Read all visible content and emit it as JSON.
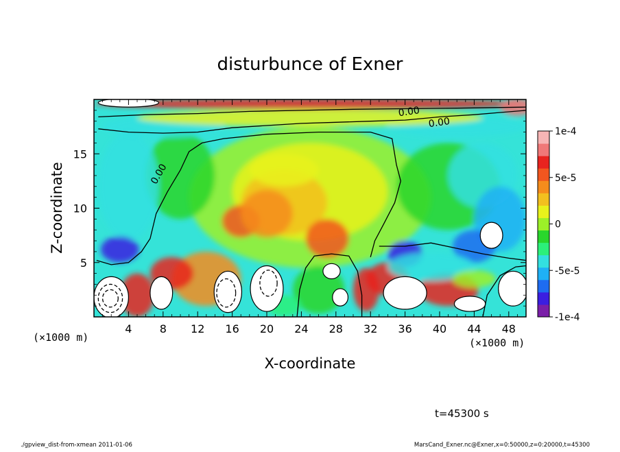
{
  "chart_data": {
    "type": "heatmap",
    "title": "disturbunce of Exner",
    "xlabel": "X-coordinate",
    "ylabel": "Z-coordinate",
    "x_unit": "(×1000 m)",
    "z_unit": "(×1000 m)",
    "xlim": [
      0,
      50
    ],
    "ylim": [
      0,
      20
    ],
    "x_ticks": [
      "4",
      "8",
      "12",
      "16",
      "20",
      "24",
      "28",
      "32",
      "36",
      "40",
      "44",
      "48"
    ],
    "x_tick_values": [
      4,
      8,
      12,
      16,
      20,
      24,
      28,
      32,
      36,
      40,
      44,
      48
    ],
    "y_ticks": [
      "5",
      "10",
      "15"
    ],
    "y_tick_values": [
      5,
      10,
      15
    ],
    "colorbar": {
      "min": -0.0001,
      "max": 0.0001,
      "tick_labels": [
        "1e-4",
        "5e-5",
        "0",
        "-5e-5",
        "-1e-4"
      ],
      "tick_values": [
        0.0001,
        5e-05,
        0,
        -5e-05,
        -0.0001
      ],
      "colors": [
        "#7a1fa8",
        "#3b1ee0",
        "#1e6cf0",
        "#1fb0f5",
        "#33e0e0",
        "#2cf07a",
        "#29d62c",
        "#9cf028",
        "#e8f21c",
        "#f2c01f",
        "#f58c1c",
        "#f2561f",
        "#e8231f",
        "#f07878",
        "#f7b5b5"
      ]
    },
    "contours": [
      {
        "level": "0.00",
        "label": "0.00",
        "style": "solid",
        "path": [
          [
            0.5,
            17.3
          ],
          [
            4,
            17.0
          ],
          [
            8,
            16.9
          ],
          [
            12,
            17.0
          ],
          [
            16,
            17.4
          ],
          [
            20,
            17.6
          ],
          [
            24,
            17.8
          ],
          [
            28,
            17.9
          ],
          [
            32,
            18.0
          ],
          [
            36,
            18.1
          ],
          [
            40,
            18.4
          ],
          [
            44,
            18.6
          ],
          [
            47,
            18.8
          ],
          [
            50,
            19.0
          ]
        ]
      },
      {
        "level": "0.00",
        "label": "0.00",
        "style": "solid",
        "path": [
          [
            0.5,
            18.4
          ],
          [
            6,
            18.6
          ],
          [
            12,
            18.7
          ],
          [
            18,
            18.9
          ],
          [
            24,
            19.0
          ],
          [
            30,
            19.1
          ],
          [
            36,
            19.15
          ],
          [
            42,
            19.2
          ],
          [
            50,
            19.3
          ]
        ]
      },
      {
        "level": "0.00",
        "label": "",
        "style": "solid",
        "path": [
          [
            0.3,
            5.2
          ],
          [
            2,
            4.8
          ],
          [
            4,
            5.0
          ],
          [
            5.5,
            6.0
          ],
          [
            6.5,
            7.2
          ],
          [
            7.2,
            9.5
          ],
          [
            8.5,
            11.5
          ],
          [
            10,
            13.5
          ],
          [
            11,
            15.2
          ],
          [
            12.5,
            16.0
          ],
          [
            15,
            16.4
          ],
          [
            20,
            16.8
          ],
          [
            26,
            17.0
          ],
          [
            32,
            17.0
          ],
          [
            34.5,
            16.4
          ],
          [
            35,
            14.0
          ],
          [
            35.5,
            12.5
          ],
          [
            34.8,
            10.5
          ],
          [
            33.5,
            8.5
          ],
          [
            32.5,
            7.0
          ],
          [
            32,
            5.5
          ]
        ]
      },
      {
        "level": "0.00",
        "label": "",
        "style": "solid",
        "path": [
          [
            33,
            6.5
          ],
          [
            36,
            6.5
          ],
          [
            39,
            6.8
          ],
          [
            42,
            6.3
          ],
          [
            45,
            5.8
          ],
          [
            48,
            5.4
          ],
          [
            50,
            5.2
          ]
        ]
      },
      {
        "level": "0.00",
        "label": "",
        "style": "solid",
        "path": [
          [
            23.5,
            0
          ],
          [
            23.8,
            2.5
          ],
          [
            24.5,
            4.5
          ],
          [
            25.5,
            5.6
          ],
          [
            27.5,
            5.8
          ],
          [
            29.5,
            5.6
          ],
          [
            30.5,
            4.2
          ],
          [
            31,
            2.0
          ],
          [
            31,
            0
          ]
        ]
      },
      {
        "level": "0.00",
        "label": "",
        "style": "solid",
        "path": [
          [
            45,
            0
          ],
          [
            45.5,
            2.0
          ],
          [
            47,
            3.8
          ],
          [
            48.8,
            4.6
          ],
          [
            50,
            4.7
          ]
        ]
      }
    ],
    "blobs_max": [
      {
        "cx": 2.0,
        "cz": 1.8,
        "rx": 2.0,
        "rz": 1.9
      },
      {
        "cx": 7.8,
        "cz": 2.2,
        "rx": 1.3,
        "rz": 1.5
      },
      {
        "cx": 15.5,
        "cz": 2.3,
        "rx": 1.6,
        "rz": 1.9
      },
      {
        "cx": 20.0,
        "cz": 2.6,
        "rx": 1.9,
        "rz": 2.1
      },
      {
        "cx": 27.5,
        "cz": 4.2,
        "rx": 1.0,
        "rz": 0.7
      },
      {
        "cx": 28.5,
        "cz": 1.8,
        "rx": 0.9,
        "rz": 0.8
      },
      {
        "cx": 36.0,
        "cz": 2.2,
        "rx": 2.5,
        "rz": 1.5
      },
      {
        "cx": 46.0,
        "cz": 7.5,
        "rx": 1.3,
        "rz": 1.2
      },
      {
        "cx": 48.5,
        "cz": 2.6,
        "rx": 1.7,
        "rz": 1.6
      },
      {
        "cx": 43.5,
        "cz": 1.2,
        "rx": 1.8,
        "rz": 0.7
      },
      {
        "cx": 4.0,
        "cz": 19.7,
        "rx": 3.5,
        "rz": 0.4
      }
    ],
    "dashed_rings": [
      {
        "cx": 1.9,
        "cz": 1.7,
        "rx": 1.4,
        "rz": 1.3
      },
      {
        "cx": 1.9,
        "cz": 1.7,
        "rx": 0.9,
        "rz": 0.8
      },
      {
        "cx": 15.3,
        "cz": 2.2,
        "rx": 1.1,
        "rz": 1.3
      },
      {
        "cx": 20.2,
        "cz": 3.1,
        "rx": 1.0,
        "rz": 1.2
      }
    ],
    "time_label": "t=45300 s"
  },
  "footer": {
    "left": "./gpview_dist-from-xmean  2011-01-06",
    "right": "MarsCand_Exner.nc@Exner,x=0:50000,z=0:20000,t=45300"
  }
}
